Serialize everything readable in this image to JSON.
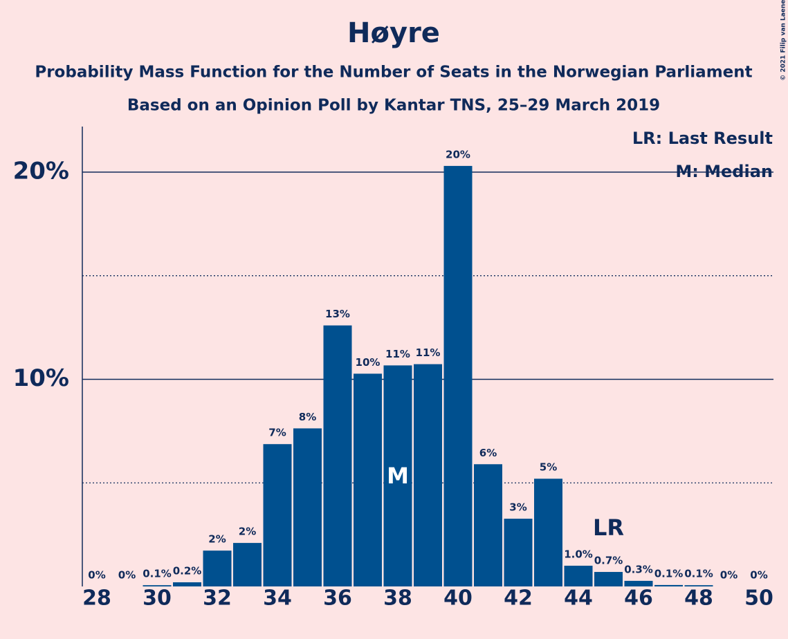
{
  "chart_data": {
    "type": "bar",
    "title": "Høyre",
    "subtitle": [
      "Probability Mass Function for the Number of Seats in the Norwegian Parliament",
      "Based on an Opinion Poll by Kantar TNS, 25–29 March 2019"
    ],
    "copyright": "© 2021 Filip van Laenen",
    "categories": [
      28,
      29,
      30,
      31,
      32,
      33,
      34,
      35,
      36,
      37,
      38,
      39,
      40,
      41,
      42,
      43,
      44,
      45,
      46,
      47,
      48,
      49,
      50
    ],
    "values": [
      0,
      0,
      0.06,
      0.2,
      1.73,
      2.1,
      6.87,
      7.63,
      12.6,
      10.27,
      10.67,
      10.73,
      20.3,
      5.9,
      3.27,
      5.2,
      1.0,
      0.7,
      0.27,
      0.07,
      0.06,
      0,
      0
    ],
    "value_labels": [
      "0%",
      "0%",
      "0.1%",
      "0.2%",
      "2%",
      "2%",
      "7%",
      "8%",
      "13%",
      "10%",
      "11%",
      "11%",
      "20%",
      "6%",
      "3%",
      "5%",
      "1.0%",
      "0.7%",
      "0.3%",
      "0.1%",
      "0.1%",
      "0%",
      "0%"
    ],
    "color": "#00508f",
    "xticks": [
      28,
      30,
      32,
      34,
      36,
      38,
      40,
      42,
      44,
      46,
      48,
      50
    ],
    "ylim": [
      0,
      22.2
    ],
    "yticks": [
      {
        "value": 10,
        "label": "10%"
      },
      {
        "value": 20,
        "label": "20%"
      }
    ],
    "minor_yticks": [
      5,
      15
    ],
    "grid": true,
    "legend": [
      "LR: Last Result",
      "M: Median"
    ],
    "annotations": [
      {
        "label": "M",
        "x": 38
      },
      {
        "label": "LR",
        "x": 45
      }
    ]
  }
}
